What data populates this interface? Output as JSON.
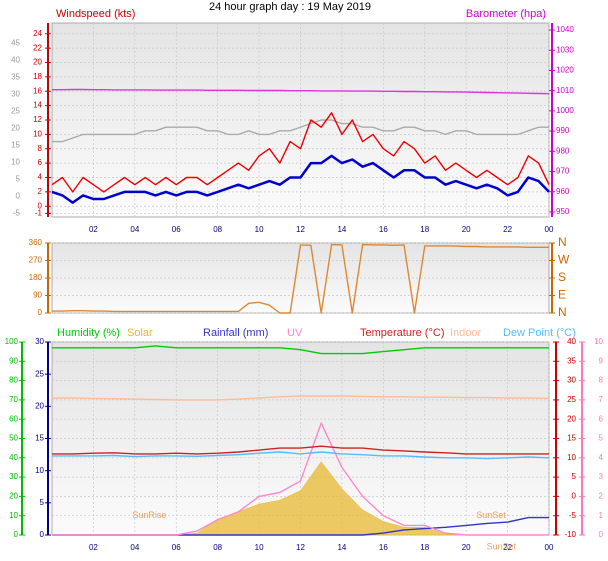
{
  "title": "24 hour graph day : 19 May 2019",
  "chart_data": [
    {
      "type": "line",
      "y_label": "Windspeed (kts)",
      "y2_label": "Barometer (hpa)",
      "grid": true,
      "x": [
        0,
        0.5,
        1,
        1.5,
        2,
        2.5,
        3,
        3.5,
        4,
        4.5,
        5,
        5.5,
        6,
        6.5,
        7,
        7.5,
        8,
        8.5,
        9,
        9.5,
        10,
        10.5,
        11,
        11.5,
        12,
        12.5,
        13,
        13.5,
        14,
        14.5,
        15,
        15.5,
        16,
        16.5,
        17,
        17.5,
        18,
        18.5,
        19,
        19.5,
        20,
        20.5,
        21,
        21.5,
        22,
        22.5,
        23,
        23.5,
        24
      ],
      "xlim": [
        0,
        24
      ],
      "xticks": [
        {
          "value": 2,
          "label": "02"
        },
        {
          "value": 4,
          "label": "04"
        },
        {
          "value": 6,
          "label": "06"
        },
        {
          "value": 8,
          "label": "08"
        },
        10,
        12,
        14,
        16,
        18,
        20,
        22,
        {
          "value": 24,
          "label": "00"
        }
      ],
      "ylim": [
        -1.5,
        25.5
      ],
      "yticks": [
        -1,
        0,
        2,
        4,
        6,
        8,
        10,
        12,
        14,
        16,
        18,
        20,
        22,
        24
      ],
      "ycolor": "#cc0000",
      "y3lim": [
        -6,
        51
      ],
      "y3ticks": [
        -5,
        0,
        5,
        10,
        15,
        20,
        25,
        30,
        35,
        40,
        45
      ],
      "y3color": "#999999",
      "y2lim": [
        947.5,
        1043.5
      ],
      "y2ticks": [
        950,
        960,
        970,
        980,
        990,
        1000,
        1010,
        1020,
        1030,
        1040
      ],
      "y2color": "#cc00cc",
      "series": [
        {
          "color": "#aaaaaa",
          "values": [
            9,
            9,
            9.5,
            10,
            10,
            10,
            10,
            10,
            10,
            10.5,
            10.5,
            11,
            11,
            11,
            11,
            10.5,
            10.5,
            10,
            10,
            10.5,
            10,
            10,
            10.5,
            10.5,
            11,
            11.5,
            12,
            12,
            11.5,
            11.5,
            11,
            11,
            10.5,
            10.5,
            11,
            11,
            10.5,
            10.5,
            10,
            10.5,
            10.5,
            10,
            10,
            10,
            10,
            10,
            10.5,
            11,
            11
          ]
        },
        {
          "color": "#ee0000",
          "values": [
            3,
            4,
            2,
            4,
            3,
            2,
            3,
            4,
            3,
            4,
            3,
            4,
            3,
            4,
            4,
            3,
            4,
            5,
            6,
            5,
            7,
            8,
            6,
            9,
            8,
            12,
            11,
            13,
            10,
            12,
            9,
            10,
            8,
            7,
            9,
            8,
            6,
            7,
            5,
            6,
            5,
            4,
            5,
            4,
            3,
            4,
            7,
            6,
            3
          ]
        },
        {
          "color": "#0000cc",
          "width": 2.5,
          "values": [
            2,
            1.5,
            0.5,
            1.5,
            1,
            1,
            1.5,
            2,
            2,
            2,
            1.5,
            2,
            1.5,
            2,
            2,
            1.5,
            2,
            2.5,
            3,
            2.5,
            3,
            3.5,
            3,
            4,
            4,
            6,
            6,
            7,
            6,
            6.5,
            5.5,
            6,
            5,
            4,
            5,
            5,
            4,
            4,
            3,
            3.5,
            3,
            2.5,
            3,
            2.5,
            1.5,
            2,
            4,
            3.5,
            2
          ]
        },
        {
          "color": "#dd33dd",
          "axis": "y2",
          "values": [
            1010.5,
            1010.5,
            1010.6,
            1010.6,
            1010.5,
            1010.5,
            1010.4,
            1010.4,
            1010.4,
            1010.4,
            1010.3,
            1010.3,
            1010.3,
            1010.3,
            1010.3,
            1010.2,
            1010.2,
            1010.2,
            1010.2,
            1010.1,
            1010.1,
            1010.1,
            1010.1,
            1010.0,
            1010.0,
            1010.0,
            1009.9,
            1009.9,
            1009.9,
            1009.8,
            1009.8,
            1009.8,
            1009.7,
            1009.7,
            1009.6,
            1009.6,
            1009.5,
            1009.5,
            1009.4,
            1009.4,
            1009.3,
            1009.2,
            1009.1,
            1009.0,
            1008.9,
            1008.8,
            1008.7,
            1008.6,
            1008.5
          ]
        }
      ]
    },
    {
      "type": "line",
      "grid": true,
      "x": [
        0,
        0.5,
        1,
        1.5,
        2,
        2.5,
        3,
        3.5,
        4,
        4.5,
        5,
        5.5,
        6,
        6.5,
        7,
        7.5,
        8,
        8.5,
        9,
        9.5,
        10,
        10.5,
        11,
        11.5,
        12,
        12.5,
        13,
        13.5,
        14,
        14.5,
        15,
        15.5,
        16,
        16.5,
        17,
        17.5,
        18,
        18.5,
        19,
        19.5,
        20,
        20.5,
        21,
        21.5,
        22,
        22.5,
        23,
        23.5,
        24
      ],
      "xlim": [
        0,
        24
      ],
      "ylim": [
        0,
        360
      ],
      "yticks": [
        0,
        90,
        180,
        270,
        360
      ],
      "ycolor": "#cc6600",
      "y2lim": [
        0,
        360
      ],
      "y2ticks": [
        {
          "value": 0,
          "label": "N"
        },
        {
          "value": 90,
          "label": "E"
        },
        {
          "value": 180,
          "label": "S"
        },
        {
          "value": 270,
          "label": "W"
        },
        {
          "value": 360,
          "label": "N"
        }
      ],
      "y2color": "#cc6600",
      "series": [
        {
          "color": "#dd8833",
          "values": [
            10,
            10,
            12,
            12,
            10,
            10,
            8,
            8,
            8,
            8,
            8,
            8,
            8,
            8,
            8,
            8,
            8,
            8,
            8,
            50,
            55,
            40,
            0,
            0,
            350,
            348,
            0,
            352,
            350,
            0,
            352,
            350,
            350,
            348,
            350,
            0,
            345,
            345,
            345,
            344,
            342,
            342,
            340,
            340,
            340,
            340,
            338,
            338,
            338
          ]
        }
      ]
    },
    {
      "type": "line",
      "grid": true,
      "x": [
        0,
        1,
        2,
        3,
        4,
        5,
        6,
        7,
        8,
        9,
        10,
        11,
        12,
        13,
        14,
        15,
        16,
        17,
        18,
        19,
        20,
        21,
        22,
        23,
        24
      ],
      "xlim": [
        0,
        24
      ],
      "xticks": [
        {
          "value": 2,
          "label": "02"
        },
        {
          "value": 4,
          "label": "04"
        },
        {
          "value": 6,
          "label": "06"
        },
        {
          "value": 8,
          "label": "08"
        },
        10,
        12,
        14,
        16,
        18,
        20,
        22,
        {
          "value": 24,
          "label": "00"
        }
      ],
      "ylim": [
        0,
        100
      ],
      "yticks": [
        0,
        10,
        20,
        30,
        40,
        50,
        60,
        70,
        80,
        90,
        100
      ],
      "ycolor": "#00bb00",
      "y3lim": [
        0,
        30
      ],
      "y3ticks": [
        0,
        5,
        10,
        15,
        20,
        25,
        30
      ],
      "y3color": "#000099",
      "y2lim": [
        -10,
        40
      ],
      "y2ticks": [
        -10,
        -5,
        0,
        5,
        10,
        15,
        20,
        25,
        30,
        35,
        40
      ],
      "y2color": "#cc0000",
      "y4lim": [
        0,
        10
      ],
      "y4ticks": [
        0,
        1,
        2,
        3,
        4,
        5,
        6,
        7,
        8,
        9,
        10
      ],
      "y4color": "#ff77bb",
      "series": [
        {
          "name": "Solar",
          "color": "#e8b830",
          "axis": "y4",
          "fill": true,
          "values": [
            0,
            0,
            0,
            0,
            0,
            0,
            0,
            0.1,
            0.8,
            1.2,
            1.6,
            1.8,
            2.3,
            3.8,
            2.4,
            1.3,
            0.7,
            0.4,
            0.4,
            0.05,
            0,
            0,
            0,
            0,
            0
          ]
        },
        {
          "name": "Humidity (%)",
          "color": "#00cc00",
          "values": [
            97,
            97,
            97,
            97,
            97,
            98,
            97,
            97,
            97,
            97,
            97,
            97,
            96,
            94,
            94,
            94,
            95,
            96,
            97,
            97,
            97,
            97,
            97,
            97,
            97
          ]
        },
        {
          "name": "Rainfall (mm)",
          "color": "#3333cc",
          "axis": "y3",
          "values": [
            0,
            0,
            0,
            0,
            0,
            0,
            0,
            0,
            0,
            0,
            0,
            0,
            0,
            0,
            0,
            0,
            0.3,
            0.8,
            1,
            1.2,
            1.5,
            1.8,
            2,
            2.7,
            2.7
          ]
        },
        {
          "name": "UV",
          "color": "#ff88cc",
          "axis": "y4",
          "values": [
            0,
            0,
            0,
            0,
            0,
            0,
            0,
            0.2,
            0.8,
            1.2,
            2,
            2.2,
            2.8,
            5.8,
            3.5,
            2,
            1,
            0.5,
            0.5,
            0.1,
            0,
            0,
            0,
            0,
            0
          ]
        },
        {
          "name": "Temperature (°C)",
          "color": "#cc2222",
          "axis": "y2",
          "values": [
            11,
            11,
            11.2,
            11.3,
            11,
            11,
            11.2,
            11,
            11.2,
            11.5,
            12,
            12.5,
            12.5,
            13,
            12.5,
            12.5,
            12,
            11.8,
            11.5,
            11.3,
            11,
            11,
            11,
            11,
            11
          ]
        },
        {
          "name": "Indoor",
          "color": "#ffbb99",
          "axis": "y2",
          "values": [
            25.5,
            25.5,
            25.4,
            25.3,
            25.2,
            25.1,
            25,
            25,
            25,
            25.2,
            25.5,
            25.8,
            26,
            26,
            26,
            25.9,
            25.8,
            25.8,
            25.7,
            25.7,
            25.6,
            25.6,
            25.5,
            25.5,
            25.4
          ]
        },
        {
          "name": "Dew Point (°C)",
          "color": "#55bbff",
          "axis": "y2",
          "values": [
            10.5,
            10.5,
            10.5,
            10.6,
            10.3,
            10.5,
            10.5,
            10.4,
            10.6,
            10.8,
            11.2,
            11.5,
            11,
            11.5,
            11,
            10.8,
            10.5,
            10.5,
            10.2,
            10,
            10,
            9.8,
            10,
            10.2,
            10
          ]
        }
      ],
      "annotations": [
        {
          "text": "SunRise",
          "x": 4.7,
          "y": -5
        },
        {
          "text": "SunSet",
          "x": 21.2,
          "y": -5
        },
        {
          "text": "SunSet",
          "x": 21.7,
          "y": -13.2
        }
      ]
    }
  ]
}
